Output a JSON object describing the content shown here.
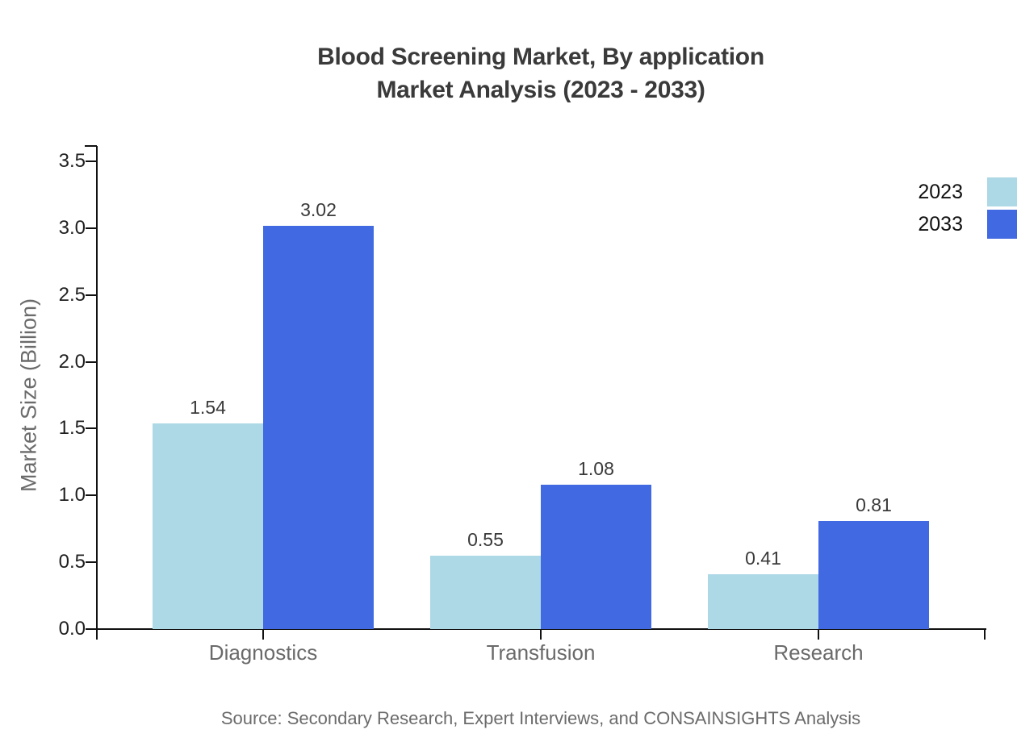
{
  "title": {
    "line1": "Blood Screening Market, By application",
    "line2": "Market Analysis (2023 - 2033)"
  },
  "chart_data": {
    "type": "bar",
    "categories": [
      "Diagnostics",
      "Transfusion",
      "Research"
    ],
    "series": [
      {
        "name": "2023",
        "color": "#ADD8E6",
        "values": [
          1.54,
          0.55,
          0.41
        ]
      },
      {
        "name": "2033",
        "color": "#4169E1",
        "values": [
          3.02,
          1.08,
          0.81
        ]
      }
    ],
    "title": "Blood Screening Market, By application Market Analysis (2023 - 2033)",
    "xlabel": "",
    "ylabel": "Market Size (Billion)",
    "yticks": [
      "0.0",
      "0.5",
      "1.0",
      "1.5",
      "2.0",
      "2.5",
      "3.0",
      "3.5"
    ],
    "ylim": [
      0,
      3.62
    ],
    "grid": false,
    "legend_position": "right",
    "value_labels": true
  },
  "legend": {
    "items": [
      {
        "label": "2023",
        "color": "#ADD8E6"
      },
      {
        "label": "2033",
        "color": "#4169E1"
      }
    ]
  },
  "source_note": "Source: Secondary Research, Expert Interviews, and CONSAINSIGHTS Analysis",
  "colors": {
    "axis": "#111111",
    "series_2023": "#ADD8E6",
    "series_2033": "#4169E1",
    "title_text": "#3a3a3a",
    "category_text": "#6a6a6a",
    "tick_text": "#1f1f1f",
    "muted_text": "#6b6b6b"
  }
}
